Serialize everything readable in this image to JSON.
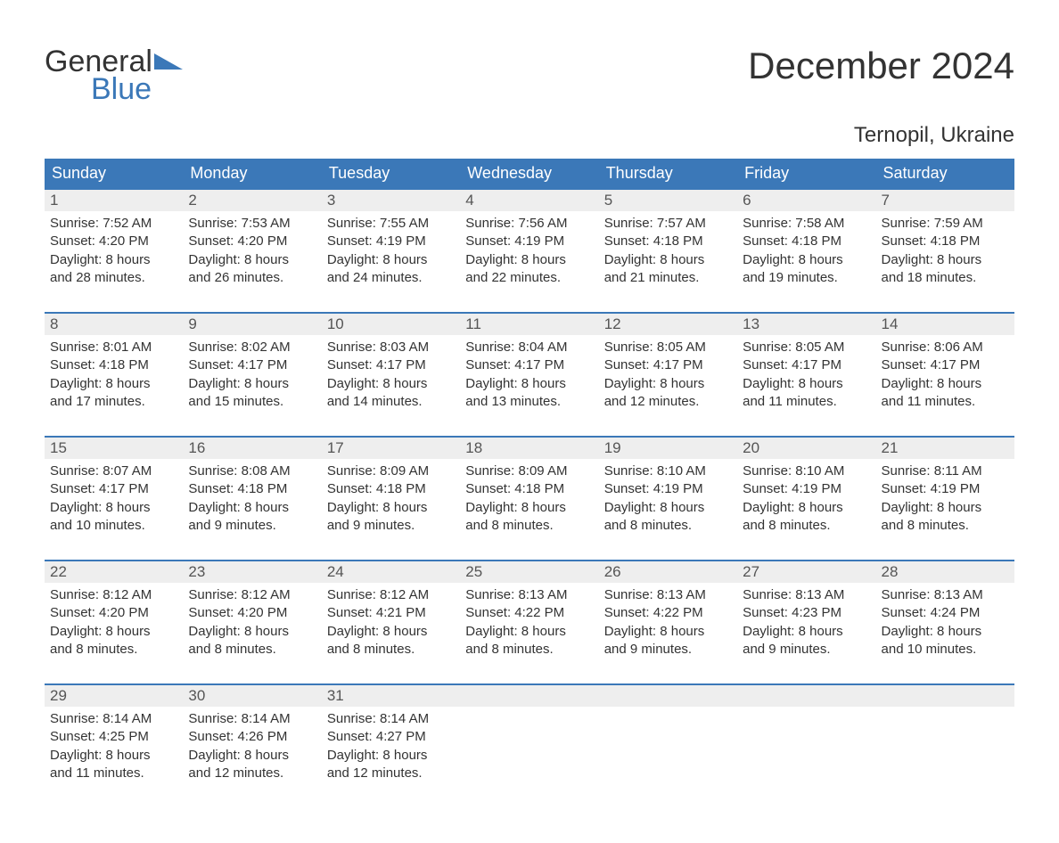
{
  "brand": {
    "word1": "General",
    "word2": "Blue",
    "accent_color": "#3b78b8",
    "text_color": "#333333"
  },
  "title": "December 2024",
  "location": "Ternopil, Ukraine",
  "colors": {
    "header_bg": "#3b78b8",
    "header_text": "#ffffff",
    "daynum_bg": "#eeeeee",
    "daynum_border": "#3b78b8",
    "body_text": "#333333",
    "background": "#ffffff"
  },
  "day_headers": [
    "Sunday",
    "Monday",
    "Tuesday",
    "Wednesday",
    "Thursday",
    "Friday",
    "Saturday"
  ],
  "weeks": [
    [
      {
        "n": "1",
        "sunrise": "7:52 AM",
        "sunset": "4:20 PM",
        "hours": "8",
        "minutes": "28"
      },
      {
        "n": "2",
        "sunrise": "7:53 AM",
        "sunset": "4:20 PM",
        "hours": "8",
        "minutes": "26"
      },
      {
        "n": "3",
        "sunrise": "7:55 AM",
        "sunset": "4:19 PM",
        "hours": "8",
        "minutes": "24"
      },
      {
        "n": "4",
        "sunrise": "7:56 AM",
        "sunset": "4:19 PM",
        "hours": "8",
        "minutes": "22"
      },
      {
        "n": "5",
        "sunrise": "7:57 AM",
        "sunset": "4:18 PM",
        "hours": "8",
        "minutes": "21"
      },
      {
        "n": "6",
        "sunrise": "7:58 AM",
        "sunset": "4:18 PM",
        "hours": "8",
        "minutes": "19"
      },
      {
        "n": "7",
        "sunrise": "7:59 AM",
        "sunset": "4:18 PM",
        "hours": "8",
        "minutes": "18"
      }
    ],
    [
      {
        "n": "8",
        "sunrise": "8:01 AM",
        "sunset": "4:18 PM",
        "hours": "8",
        "minutes": "17"
      },
      {
        "n": "9",
        "sunrise": "8:02 AM",
        "sunset": "4:17 PM",
        "hours": "8",
        "minutes": "15"
      },
      {
        "n": "10",
        "sunrise": "8:03 AM",
        "sunset": "4:17 PM",
        "hours": "8",
        "minutes": "14"
      },
      {
        "n": "11",
        "sunrise": "8:04 AM",
        "sunset": "4:17 PM",
        "hours": "8",
        "minutes": "13"
      },
      {
        "n": "12",
        "sunrise": "8:05 AM",
        "sunset": "4:17 PM",
        "hours": "8",
        "minutes": "12"
      },
      {
        "n": "13",
        "sunrise": "8:05 AM",
        "sunset": "4:17 PM",
        "hours": "8",
        "minutes": "11"
      },
      {
        "n": "14",
        "sunrise": "8:06 AM",
        "sunset": "4:17 PM",
        "hours": "8",
        "minutes": "11"
      }
    ],
    [
      {
        "n": "15",
        "sunrise": "8:07 AM",
        "sunset": "4:17 PM",
        "hours": "8",
        "minutes": "10"
      },
      {
        "n": "16",
        "sunrise": "8:08 AM",
        "sunset": "4:18 PM",
        "hours": "8",
        "minutes": "9"
      },
      {
        "n": "17",
        "sunrise": "8:09 AM",
        "sunset": "4:18 PM",
        "hours": "8",
        "minutes": "9"
      },
      {
        "n": "18",
        "sunrise": "8:09 AM",
        "sunset": "4:18 PM",
        "hours": "8",
        "minutes": "8"
      },
      {
        "n": "19",
        "sunrise": "8:10 AM",
        "sunset": "4:19 PM",
        "hours": "8",
        "minutes": "8"
      },
      {
        "n": "20",
        "sunrise": "8:10 AM",
        "sunset": "4:19 PM",
        "hours": "8",
        "minutes": "8"
      },
      {
        "n": "21",
        "sunrise": "8:11 AM",
        "sunset": "4:19 PM",
        "hours": "8",
        "minutes": "8"
      }
    ],
    [
      {
        "n": "22",
        "sunrise": "8:12 AM",
        "sunset": "4:20 PM",
        "hours": "8",
        "minutes": "8"
      },
      {
        "n": "23",
        "sunrise": "8:12 AM",
        "sunset": "4:20 PM",
        "hours": "8",
        "minutes": "8"
      },
      {
        "n": "24",
        "sunrise": "8:12 AM",
        "sunset": "4:21 PM",
        "hours": "8",
        "minutes": "8"
      },
      {
        "n": "25",
        "sunrise": "8:13 AM",
        "sunset": "4:22 PM",
        "hours": "8",
        "minutes": "8"
      },
      {
        "n": "26",
        "sunrise": "8:13 AM",
        "sunset": "4:22 PM",
        "hours": "8",
        "minutes": "9"
      },
      {
        "n": "27",
        "sunrise": "8:13 AM",
        "sunset": "4:23 PM",
        "hours": "8",
        "minutes": "9"
      },
      {
        "n": "28",
        "sunrise": "8:13 AM",
        "sunset": "4:24 PM",
        "hours": "8",
        "minutes": "10"
      }
    ],
    [
      {
        "n": "29",
        "sunrise": "8:14 AM",
        "sunset": "4:25 PM",
        "hours": "8",
        "minutes": "11"
      },
      {
        "n": "30",
        "sunrise": "8:14 AM",
        "sunset": "4:26 PM",
        "hours": "8",
        "minutes": "12"
      },
      {
        "n": "31",
        "sunrise": "8:14 AM",
        "sunset": "4:27 PM",
        "hours": "8",
        "minutes": "12"
      },
      null,
      null,
      null,
      null
    ]
  ],
  "labels": {
    "sunrise": "Sunrise: ",
    "sunset": "Sunset: ",
    "daylight1": "Daylight: ",
    "daylight_hours_suffix": " hours",
    "daylight_and": "and ",
    "daylight_minutes_suffix": " minutes."
  }
}
